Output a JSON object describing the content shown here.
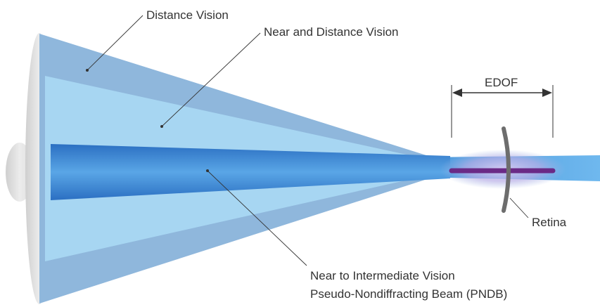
{
  "labels": {
    "distance_vision": "Distance Vision",
    "near_and_distance_vision": "Near and Distance Vision",
    "edof": "EDOF",
    "retina": "Retina",
    "near_to_intermediate_line1": "Near to Intermediate Vision",
    "near_to_intermediate_line2": "Pseudo-Nondiffracting Beam (PNDB)"
  },
  "colors": {
    "outer_cone": "#8fb7dc",
    "inner_cone": "#a7d6f2",
    "beam_core": "#3f8fd6",
    "beam_edge": "#2b74c7",
    "focus_glow": "#c2b7e8",
    "focus_line": "#6a2a86",
    "retina": "#6d6d6d",
    "lens": "#e6e6e6"
  }
}
